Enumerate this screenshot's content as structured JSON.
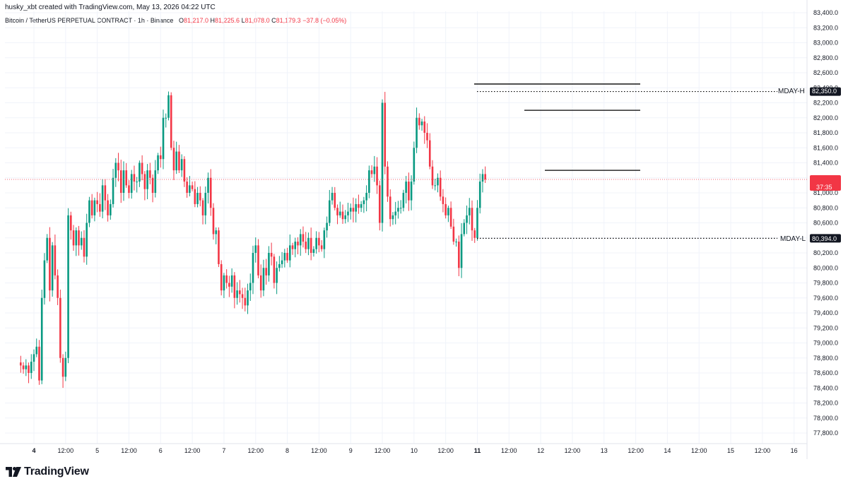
{
  "header": {
    "creator_line": "husky_xbt created with TradingView.com, May 13, 2026 04:22 UTC"
  },
  "legend": {
    "symbol": "Bitcoin / TetherUS PERPETUAL CONTRACT · 1h · Binance",
    "o_label": "O",
    "o_value": "81,217.0",
    "h_label": "H",
    "h_value": "81,225.6",
    "l_label": "L",
    "l_value": "81,078.0",
    "c_label": "C",
    "c_value": "81,179.3",
    "change": "−37.8 (−0.05%)"
  },
  "branding": {
    "logo_text": "TradingView",
    "logo_icon": "tradingview-logo-icon"
  },
  "colors": {
    "up": "#089981",
    "down": "#f23645",
    "grid": "#f0f3fa",
    "line": "#000000",
    "price_line": "#f23645"
  },
  "chart_data": {
    "type": "candlestick",
    "ylim": [
      77700,
      83500
    ],
    "y_ticks": [
      "77,800.0",
      "78,000.0",
      "78,200.0",
      "78,400.0",
      "78,600.0",
      "78,800.0",
      "79,000.0",
      "79,200.0",
      "79,400.0",
      "79,600.0",
      "79,800.0",
      "80,000.0",
      "80,200.0",
      "80,400.0",
      "80,600.0",
      "80,800.0",
      "81,000.0",
      "81,200.0",
      "81,400.0",
      "81,600.0",
      "81,800.0",
      "82,000.0",
      "82,200.0",
      "82,400.0",
      "82,600.0",
      "82,800.0",
      "83,000.0",
      "83,200.0",
      "83,400.0"
    ],
    "y_tick_values": [
      77800,
      78000,
      78200,
      78400,
      78600,
      78800,
      79000,
      79200,
      79400,
      79600,
      79800,
      80000,
      80200,
      80400,
      80600,
      80800,
      81000,
      81200,
      81400,
      81600,
      81800,
      82000,
      82200,
      82400,
      82600,
      82800,
      83000,
      83200,
      83400
    ],
    "x_ticks": [
      {
        "label": "4",
        "bold": true
      },
      {
        "label": "12:00"
      },
      {
        "label": "5"
      },
      {
        "label": "12:00"
      },
      {
        "label": "6"
      },
      {
        "label": "12:00"
      },
      {
        "label": "7"
      },
      {
        "label": "12:00"
      },
      {
        "label": "8"
      },
      {
        "label": "12:00"
      },
      {
        "label": "9"
      },
      {
        "label": "12:00"
      },
      {
        "label": "10"
      },
      {
        "label": "12:00"
      },
      {
        "label": "11",
        "bold": true
      },
      {
        "label": "12:00"
      },
      {
        "label": "12"
      },
      {
        "label": "12:00"
      },
      {
        "label": "13"
      },
      {
        "label": "12:00"
      },
      {
        "label": "14"
      },
      {
        "label": "12:00"
      },
      {
        "label": "15"
      },
      {
        "label": "12:00"
      },
      {
        "label": "16"
      }
    ],
    "x_tick_hours": [
      0,
      12,
      24,
      36,
      48,
      60,
      72,
      84,
      96,
      108,
      120,
      132,
      144,
      156,
      168,
      180,
      192,
      204,
      216,
      228,
      240,
      252,
      264,
      276,
      288
    ],
    "first_candle_hour": -5,
    "candles_anchor_close": [
      78700,
      78650,
      78700,
      78600,
      78750,
      78850,
      78950,
      78500,
      79600,
      80100,
      80400,
      79700,
      80300,
      79900,
      79600,
      78800,
      78550,
      78800,
      80700,
      80500,
      80300,
      80500,
      80300,
      80400,
      80150,
      80600,
      80900,
      80700,
      80900,
      80850,
      80750,
      81100,
      80900,
      80700,
      80850,
      81200,
      81400,
      81300,
      81000,
      81300,
      81100,
      81000,
      81250,
      81150,
      81150,
      81400,
      81250,
      81050,
      81300,
      81200,
      81000,
      81300,
      81500,
      81450,
      82000,
      82000,
      82300,
      81600,
      81300,
      81550,
      81300,
      81450,
      81150,
      81000,
      81100,
      81050,
      80850,
      81000,
      80900,
      80700,
      81000,
      81200,
      80800,
      80450,
      80500,
      80050,
      79700,
      79900,
      79800,
      79750,
      79900,
      79600,
      79700,
      79650,
      79600,
      79500,
      79700,
      79800,
      80200,
      80300,
      79900,
      79700,
      80000,
      79900,
      80200,
      80150,
      79800,
      80000,
      80050,
      80100,
      80200,
      80100,
      80300,
      80250,
      80350,
      80300,
      80450,
      80350,
      80250,
      80400,
      80200,
      80250,
      80400,
      80300,
      80250,
      80500,
      80600,
      80900,
      81000,
      80800,
      80700,
      80750,
      80650,
      80700,
      80750,
      80800,
      80750,
      80850,
      80800,
      80850,
      80900,
      81000,
      81300,
      81250,
      81350,
      81100,
      80600,
      82200,
      81350,
      80950,
      80650,
      80700,
      80750,
      80800,
      80800,
      81000,
      81150,
      80900,
      81150,
      81600,
      82000,
      81900,
      81950,
      81800,
      81700,
      81350,
      81100,
      81100,
      81200,
      80950,
      80850,
      80700,
      80800,
      80550,
      80350,
      80350,
      80000,
      80450,
      80600,
      80700,
      80800,
      80500,
      80400,
      80800,
      81150,
      81250,
      81179
    ]
  }
}
